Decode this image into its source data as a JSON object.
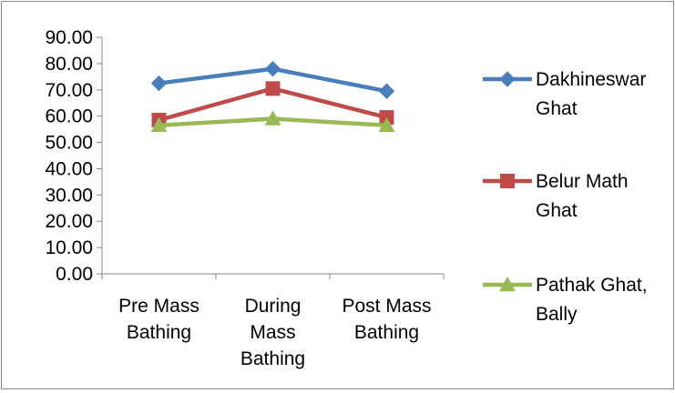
{
  "chart_data": {
    "type": "line",
    "title": "",
    "xlabel": "",
    "ylabel": "",
    "categories": [
      [
        "Pre Mass",
        "Bathing"
      ],
      [
        "During",
        "Mass",
        "Bathing"
      ],
      [
        "Post Mass",
        "Bathing"
      ]
    ],
    "ylim": [
      0,
      90
    ],
    "y_ticks": [
      "0.00",
      "10.00",
      "20.00",
      "30.00",
      "40.00",
      "50.00",
      "60.00",
      "70.00",
      "80.00",
      "90.00"
    ],
    "grid": false,
    "legend_position": "right",
    "series": [
      {
        "name": [
          "Dakhineswar",
          "Ghat"
        ],
        "values": [
          72.5,
          78.0,
          69.5
        ],
        "color": "#4a7ebb",
        "marker": "diamond"
      },
      {
        "name": [
          "Belur Math",
          "Ghat"
        ],
        "values": [
          58.5,
          70.5,
          59.5
        ],
        "color": "#be4b48",
        "marker": "square"
      },
      {
        "name": [
          "Pathak Ghat,",
          "Bally"
        ],
        "values": [
          56.5,
          59.0,
          56.5
        ],
        "color": "#98b954",
        "marker": "triangle"
      }
    ]
  }
}
